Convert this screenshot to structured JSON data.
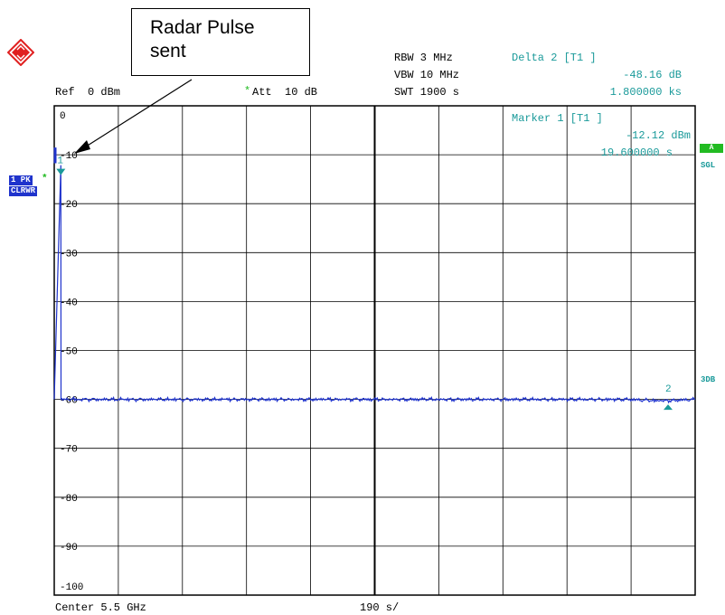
{
  "callout": {
    "line1": "Radar Pulse",
    "line2": "sent"
  },
  "header": {
    "ref": "Ref  0 dBm",
    "att_star": "*",
    "att": "Att  10 dB",
    "rbw": "RBW 3 MHz",
    "vbw": "VBW 10 MHz",
    "swt": "SWT 1900 s",
    "delta_title": "Delta 2 [T1 ]",
    "delta_level": "-48.16 dB",
    "delta_time": "1.800000 ks"
  },
  "marker_box": {
    "title": "Marker 1 [T1 ]",
    "level": "-12.12 dBm",
    "time": "19.600000 s"
  },
  "side_labels": {
    "trace_tag": "1 PK",
    "trace_star": "*",
    "trace_mode": "CLRWR",
    "a_tag": "A",
    "sgl": "SGL",
    "three_db": "3DB"
  },
  "footer": {
    "center": "Center 5.5 GHz",
    "span": "190 s/"
  },
  "colors": {
    "trace": "#1f33cc",
    "marker": "#1a9a9a",
    "grid": "#000000",
    "tag_green": "#22bb22"
  },
  "chart_data": {
    "type": "line",
    "title": "",
    "xlabel": "",
    "ylabel": "",
    "x_unit": "s",
    "x_range": [
      0,
      1900
    ],
    "ylim": [
      -100,
      0
    ],
    "y_ticks": [
      0,
      -10,
      -20,
      -30,
      -40,
      -50,
      -60,
      -70,
      -80,
      -90,
      -100
    ],
    "grid": true,
    "series": [
      {
        "x": [
          0,
          19.6,
          20,
          40,
          100,
          200,
          300,
          400,
          500,
          600,
          700,
          800,
          900,
          1000,
          1100,
          1200,
          1300,
          1400,
          1500,
          1600,
          1700,
          1800,
          1900
        ],
        "y": [
          -60,
          -12.12,
          -60,
          -60,
          -60,
          -60,
          -60,
          -60,
          -60,
          -60,
          -60,
          -60,
          -60,
          -60,
          -60,
          -60,
          -60,
          -60,
          -60,
          -60,
          -60,
          -60.3,
          -60
        ]
      }
    ],
    "markers": [
      {
        "label": "1",
        "x": 19.6,
        "y": -12.12
      },
      {
        "label": "2",
        "x": 1819.6,
        "y": -60.28
      }
    ]
  }
}
